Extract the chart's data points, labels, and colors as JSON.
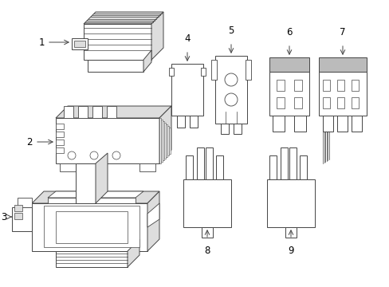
{
  "background_color": "#ffffff",
  "line_color": "#444444",
  "gray_fill": "#bbbbbb",
  "light_gray": "#dddddd",
  "fig_width": 4.89,
  "fig_height": 3.6,
  "dpi": 100
}
